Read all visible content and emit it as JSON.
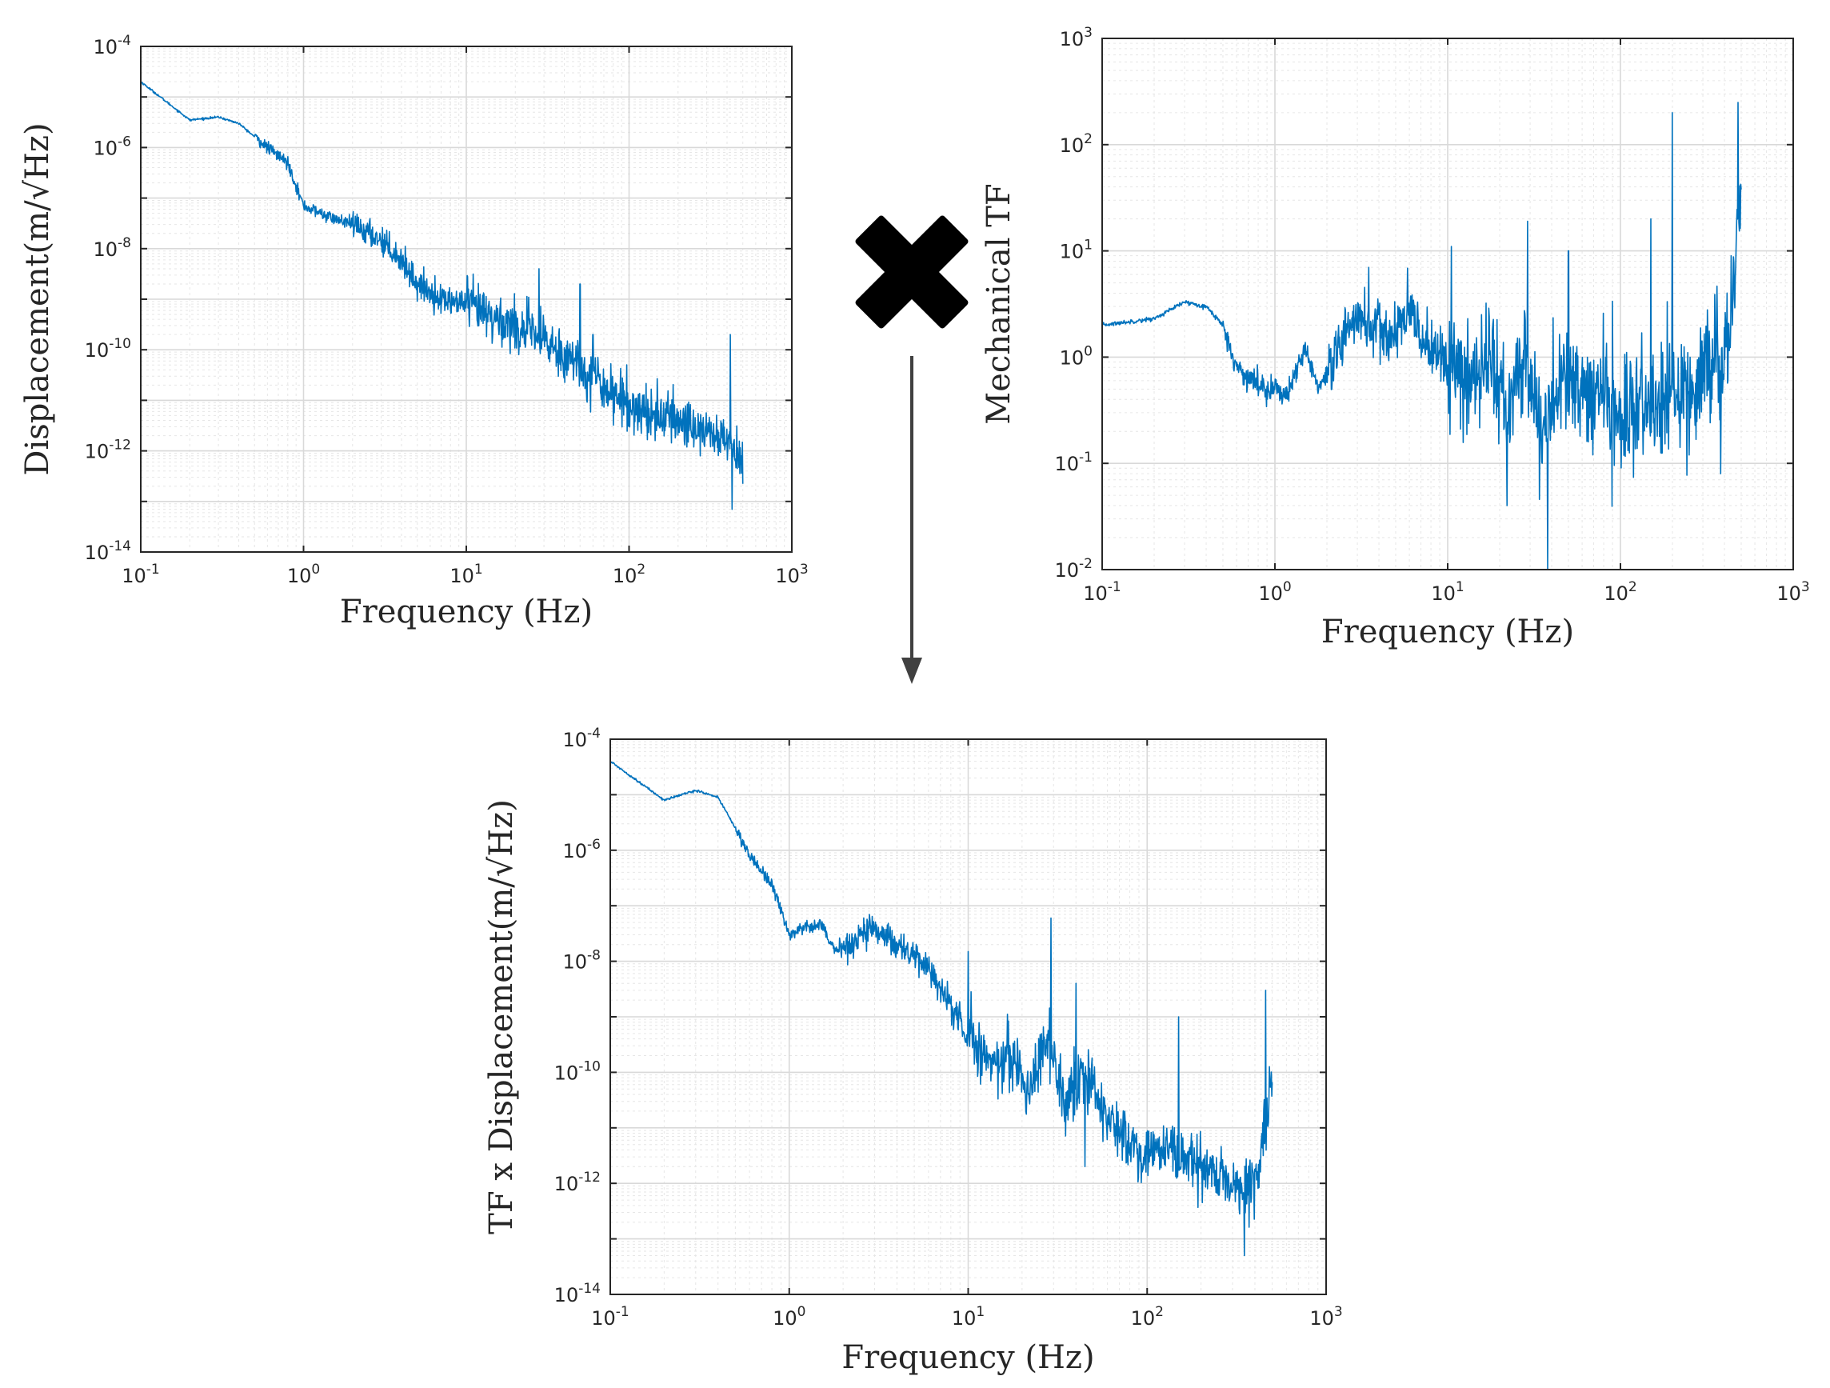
{
  "chart_data": [
    {
      "id": "displacement",
      "type": "line",
      "scale": "loglog",
      "title": "",
      "xlabel": "Frequency (Hz)",
      "ylabel": "Displacement(m/√Hz)",
      "xlim": [
        0.1,
        1000
      ],
      "ylim": [
        1e-14,
        0.0001
      ],
      "grid": true,
      "x_ticks": [
        {
          "mant": "10",
          "exp": "-1"
        },
        {
          "mant": "10",
          "exp": "0"
        },
        {
          "mant": "10",
          "exp": "1"
        },
        {
          "mant": "10",
          "exp": "2"
        },
        {
          "mant": "10",
          "exp": "3"
        }
      ],
      "y_ticks": [
        {
          "mant": "10",
          "exp": "-14"
        },
        {
          "mant": "10",
          "exp": "-12"
        },
        {
          "mant": "10",
          "exp": "-10"
        },
        {
          "mant": "10",
          "exp": "-8"
        },
        {
          "mant": "10",
          "exp": "-6"
        },
        {
          "mant": "10",
          "exp": "-4"
        }
      ],
      "series": [
        {
          "name": "Displacement",
          "color": "#0072bd",
          "x": [
            0.1,
            0.2,
            0.3,
            0.4,
            0.6,
            0.8,
            1.0,
            1.5,
            2.0,
            3.0,
            4.0,
            5.0,
            7.0,
            10,
            15,
            20,
            30,
            50,
            70,
            100,
            150,
            200,
            300,
            400,
            500
          ],
          "y": [
            2e-05,
            3.5e-06,
            4e-06,
            3e-06,
            1e-06,
            5e-07,
            7e-08,
            4e-08,
            3e-08,
            1.5e-08,
            6e-09,
            2e-09,
            1e-09,
            8e-10,
            4e-10,
            3e-10,
            1.5e-10,
            5e-11,
            2e-11,
            8e-12,
            5e-12,
            4e-12,
            2.5e-12,
            1.5e-12,
            8e-13
          ],
          "spikes": [
            {
              "x": 28,
              "y": 4e-09
            },
            {
              "x": 50,
              "y": 2e-09
            },
            {
              "x": 60,
              "y": 2e-10
            },
            {
              "x": 150,
              "y": 1e-11
            },
            {
              "x": 420,
              "y": 2e-10
            },
            {
              "x": 430,
              "y": 7e-14
            }
          ]
        }
      ]
    },
    {
      "id": "mechanical_tf",
      "type": "line",
      "scale": "loglog",
      "title": "",
      "xlabel": "Frequency (Hz)",
      "ylabel": "Mechanical TF",
      "xlim": [
        0.1,
        1000
      ],
      "ylim": [
        0.01,
        1000
      ],
      "grid": true,
      "x_ticks": [
        {
          "mant": "10",
          "exp": "-1"
        },
        {
          "mant": "10",
          "exp": "0"
        },
        {
          "mant": "10",
          "exp": "1"
        },
        {
          "mant": "10",
          "exp": "2"
        },
        {
          "mant": "10",
          "exp": "3"
        }
      ],
      "y_ticks": [
        {
          "mant": "10",
          "exp": "-2"
        },
        {
          "mant": "10",
          "exp": "-1"
        },
        {
          "mant": "10",
          "exp": "0"
        },
        {
          "mant": "10",
          "exp": "1"
        },
        {
          "mant": "10",
          "exp": "2"
        },
        {
          "mant": "10",
          "exp": "3"
        }
      ],
      "series": [
        {
          "name": "Mechanical TF",
          "color": "#0072bd",
          "x": [
            0.1,
            0.2,
            0.3,
            0.4,
            0.5,
            0.6,
            0.8,
            1.0,
            1.2,
            1.5,
            1.8,
            2.2,
            2.8,
            3.5,
            4.5,
            6,
            8,
            10,
            13,
            17,
            22,
            28,
            35,
            45,
            60,
            80,
            100,
            130,
            170,
            220,
            280,
            350,
            420,
            500
          ],
          "y": [
            2.0,
            2.3,
            3.3,
            3.0,
            2.0,
            0.8,
            0.55,
            0.5,
            0.45,
            1.2,
            0.5,
            0.8,
            2.5,
            2.0,
            1.5,
            2.5,
            1.2,
            0.9,
            0.5,
            1.2,
            0.3,
            1.0,
            0.2,
            0.6,
            0.4,
            0.5,
            0.25,
            0.35,
            0.3,
            0.5,
            0.6,
            1.0,
            1.2,
            40
          ],
          "spikes": [
            {
              "x": 3.5,
              "y": 7
            },
            {
              "x": 10.5,
              "y": 11
            },
            {
              "x": 22,
              "y": 0.04
            },
            {
              "x": 29,
              "y": 19
            },
            {
              "x": 38,
              "y": 0.01
            },
            {
              "x": 50,
              "y": 10
            },
            {
              "x": 150,
              "y": 20
            },
            {
              "x": 200,
              "y": 200
            },
            {
              "x": 250,
              "y": 0.12
            },
            {
              "x": 380,
              "y": 0.08
            },
            {
              "x": 480,
              "y": 250
            }
          ]
        }
      ]
    },
    {
      "id": "tf_x_displacement",
      "type": "line",
      "scale": "loglog",
      "title": "",
      "xlabel": "Frequency (Hz)",
      "ylabel": "TF x Displacement(m/√Hz)",
      "xlim": [
        0.1,
        1000
      ],
      "ylim": [
        1e-14,
        0.0001
      ],
      "grid": true,
      "x_ticks": [
        {
          "mant": "10",
          "exp": "-1"
        },
        {
          "mant": "10",
          "exp": "0"
        },
        {
          "mant": "10",
          "exp": "1"
        },
        {
          "mant": "10",
          "exp": "2"
        },
        {
          "mant": "10",
          "exp": "3"
        }
      ],
      "y_ticks": [
        {
          "mant": "10",
          "exp": "-14"
        },
        {
          "mant": "10",
          "exp": "-12"
        },
        {
          "mant": "10",
          "exp": "-10"
        },
        {
          "mant": "10",
          "exp": "-8"
        },
        {
          "mant": "10",
          "exp": "-6"
        },
        {
          "mant": "10",
          "exp": "-4"
        }
      ],
      "series": [
        {
          "name": "TF x Displacement",
          "color": "#0072bd",
          "x": [
            0.1,
            0.2,
            0.3,
            0.4,
            0.5,
            0.6,
            0.8,
            1.0,
            1.2,
            1.5,
            1.8,
            2.2,
            2.8,
            3.5,
            4.5,
            6,
            8,
            10,
            13,
            17,
            22,
            28,
            35,
            45,
            60,
            80,
            100,
            130,
            170,
            220,
            280,
            350,
            420,
            500
          ],
          "y": [
            4e-05,
            8e-06,
            1.2e-05,
            9e-06,
            2.5e-06,
            8e-07,
            2.5e-07,
            3e-08,
            4e-08,
            5e-08,
            1.5e-08,
            2e-08,
            4e-08,
            3e-08,
            1.5e-08,
            8e-09,
            1.5e-09,
            5e-10,
            1.5e-10,
            2e-10,
            5e-11,
            5e-10,
            2e-11,
            1e-10,
            1.5e-11,
            5e-12,
            3e-12,
            5e-12,
            2e-12,
            2e-12,
            1e-12,
            8e-13,
            1.5e-12,
            5e-11
          ],
          "spikes": [
            {
              "x": 2.8,
              "y": 7e-08
            },
            {
              "x": 10,
              "y": 1.5e-08
            },
            {
              "x": 29,
              "y": 6e-08
            },
            {
              "x": 40,
              "y": 4e-09
            },
            {
              "x": 45,
              "y": 2e-12
            },
            {
              "x": 150,
              "y": 1e-09
            },
            {
              "x": 350,
              "y": 5e-14
            },
            {
              "x": 460,
              "y": 3e-09
            }
          ]
        }
      ]
    }
  ],
  "colors": {
    "series": "#0072bd",
    "arrow": "#404040",
    "multiply_sign": "#000000"
  },
  "icons": {
    "multiply": "multiply-icon",
    "arrow": "arrow-down-icon"
  }
}
